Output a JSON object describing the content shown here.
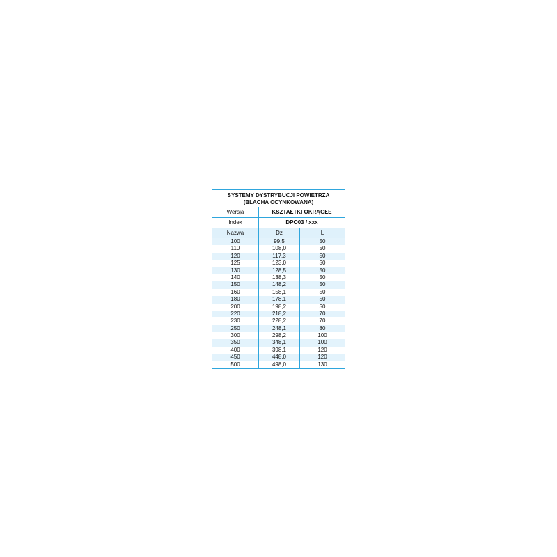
{
  "title": {
    "line1": "SYSTEMY DYSTRYBUCJI POWIETRZA",
    "line2": "(BLACHA OCYNKOWANA)"
  },
  "wersja": {
    "label": "Wersja",
    "value": "KSZTAŁTKI OKRĄGŁE"
  },
  "index": {
    "label": "Index",
    "value": "DPO03 / xxx"
  },
  "columns": [
    "Nazwa",
    "Dz",
    "L"
  ],
  "colors": {
    "border": "#2fa6dd",
    "stripe": "#e3f3fc"
  },
  "rows": [
    [
      "100",
      "99,5",
      "50"
    ],
    [
      "110",
      "108,0",
      "50"
    ],
    [
      "120",
      "117,3",
      "50"
    ],
    [
      "125",
      "123,0",
      "50"
    ],
    [
      "130",
      "128,5",
      "50"
    ],
    [
      "140",
      "138,3",
      "50"
    ],
    [
      "150",
      "148,2",
      "50"
    ],
    [
      "160",
      "158,1",
      "50"
    ],
    [
      "180",
      "178,1",
      "50"
    ],
    [
      "200",
      "198,2",
      "50"
    ],
    [
      "220",
      "218,2",
      "70"
    ],
    [
      "230",
      "228,2",
      "70"
    ],
    [
      "250",
      "248,1",
      "80"
    ],
    [
      "300",
      "298,2",
      "100"
    ],
    [
      "350",
      "348,1",
      "100"
    ],
    [
      "400",
      "398,1",
      "120"
    ],
    [
      "450",
      "448,0",
      "120"
    ],
    [
      "500",
      "498,0",
      "130"
    ]
  ]
}
